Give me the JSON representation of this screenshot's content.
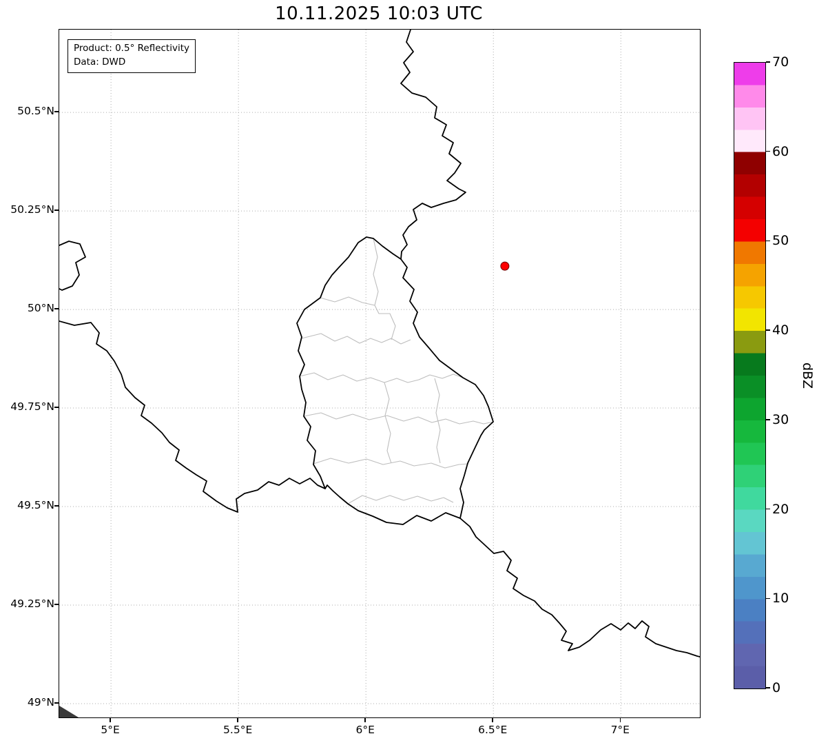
{
  "title": "10.11.2025 10:03 UTC",
  "info_box": {
    "line1": "Product: 0.5° Reflectivity",
    "line2": "Data: DWD"
  },
  "chart_data": {
    "type": "map",
    "title": "10.11.2025 10:03 UTC",
    "product": "0.5° Reflectivity",
    "data_source": "DWD",
    "extent": {
      "lon_min": 4.797,
      "lon_max": 7.31,
      "lat_min": 48.965,
      "lat_max": 50.71
    },
    "lon_ticks": [
      {
        "value": 5.0,
        "label": "5°E"
      },
      {
        "value": 5.5,
        "label": "5.5°E"
      },
      {
        "value": 6.0,
        "label": "6°E"
      },
      {
        "value": 6.5,
        "label": "6.5°E"
      },
      {
        "value": 7.0,
        "label": "7°E"
      }
    ],
    "lat_ticks": [
      {
        "value": 50.5,
        "label": "50.5°N"
      },
      {
        "value": 50.25,
        "label": "50.25°N"
      },
      {
        "value": 50.0,
        "label": "50°N"
      },
      {
        "value": 49.75,
        "label": "49.75°N"
      },
      {
        "value": 49.5,
        "label": "49.5°N"
      },
      {
        "value": 49.25,
        "label": "49.25°N"
      },
      {
        "value": 49.0,
        "label": "49°N"
      }
    ],
    "grid": {
      "style": "dotted",
      "color": "#ababab"
    },
    "radar_site": {
      "lon": 6.545,
      "lat": 50.11,
      "color": "#ff0000"
    },
    "colorbar": {
      "label": "dBZ",
      "min": 0,
      "max": 70,
      "ticks": [
        0,
        10,
        20,
        30,
        40,
        50,
        60,
        70
      ],
      "band_size": 2.5,
      "colors_bottom_to_top": [
        "#5b5ea9",
        "#6066b0",
        "#5470ba",
        "#4b80c3",
        "#4f96cc",
        "#58a9d1",
        "#63c5d3",
        "#5ad8c1",
        "#40d99e",
        "#2fd177",
        "#20c654",
        "#16b83d",
        "#0da52f",
        "#0a8f26",
        "#077a1d",
        "#8a9b10",
        "#f2e500",
        "#f6c800",
        "#f5a300",
        "#f07800",
        "#f40000",
        "#d50000",
        "#b30000",
        "#8f0000",
        "#ffe9fb",
        "#ffc4f4",
        "#ff8aea",
        "#ee3dea"
      ]
    },
    "map": {
      "country_border_color": "#000000",
      "admin_border_color": "#bdbdbd",
      "country_borders": [
        [
          [
            510,
            0
          ],
          [
            504,
            18
          ],
          [
            514,
            32
          ],
          [
            500,
            48
          ],
          [
            509,
            62
          ],
          [
            496,
            78
          ],
          [
            512,
            92
          ],
          [
            532,
            98
          ],
          [
            548,
            112
          ],
          [
            545,
            128
          ],
          [
            562,
            138
          ],
          [
            556,
            154
          ],
          [
            572,
            164
          ],
          [
            566,
            180
          ],
          [
            583,
            194
          ],
          [
            574,
            208
          ],
          [
            563,
            219
          ],
          [
            580,
            231
          ],
          [
            590,
            236
          ],
          [
            576,
            247
          ],
          [
            558,
            252
          ],
          [
            540,
            258
          ],
          [
            527,
            252
          ],
          [
            514,
            261
          ],
          [
            519,
            276
          ],
          [
            507,
            286
          ],
          [
            499,
            298
          ],
          [
            505,
            312
          ],
          [
            497,
            322
          ],
          [
            496,
            333
          ]
        ],
        [
          [
            0,
            313
          ],
          [
            14,
            307
          ],
          [
            30,
            311
          ],
          [
            38,
            330
          ],
          [
            24,
            338
          ],
          [
            29,
            356
          ],
          [
            19,
            372
          ],
          [
            4,
            378
          ],
          [
            0,
            376
          ]
        ],
        [
          [
            0,
            423
          ],
          [
            22,
            429
          ],
          [
            46,
            425
          ],
          [
            58,
            440
          ],
          [
            54,
            456
          ],
          [
            69,
            466
          ],
          [
            80,
            481
          ],
          [
            90,
            500
          ],
          [
            96,
            519
          ],
          [
            110,
            534
          ],
          [
            124,
            545
          ],
          [
            119,
            560
          ],
          [
            134,
            571
          ],
          [
            149,
            585
          ],
          [
            160,
            599
          ],
          [
            174,
            610
          ],
          [
            169,
            625
          ],
          [
            184,
            636
          ],
          [
            199,
            646
          ],
          [
            214,
            655
          ],
          [
            209,
            670
          ],
          [
            228,
            684
          ],
          [
            244,
            694
          ],
          [
            259,
            700
          ],
          [
            257,
            681
          ],
          [
            269,
            673
          ],
          [
            288,
            668
          ],
          [
            304,
            656
          ],
          [
            319,
            661
          ],
          [
            334,
            651
          ],
          [
            349,
            659
          ],
          [
            364,
            651
          ],
          [
            375,
            661
          ],
          [
            386,
            666
          ]
        ],
        [
          [
            496,
            333
          ],
          [
            505,
            345
          ],
          [
            499,
            360
          ],
          [
            515,
            377
          ],
          [
            509,
            394
          ],
          [
            520,
            410
          ],
          [
            514,
            426
          ],
          [
            523,
            446
          ],
          [
            536,
            461
          ],
          [
            552,
            480
          ],
          [
            571,
            494
          ],
          [
            586,
            505
          ],
          [
            604,
            515
          ],
          [
            616,
            531
          ],
          [
            623,
            547
          ],
          [
            630,
            569
          ],
          [
            617,
            581
          ],
          [
            612,
            589
          ],
          [
            601,
            612
          ],
          [
            593,
            629
          ],
          [
            588,
            647
          ],
          [
            582,
            666
          ],
          [
            587,
            686
          ],
          [
            582,
            709
          ],
          [
            561,
            701
          ],
          [
            540,
            713
          ],
          [
            519,
            705
          ],
          [
            499,
            718
          ],
          [
            475,
            715
          ],
          [
            455,
            706
          ],
          [
            434,
            698
          ],
          [
            419,
            688
          ],
          [
            407,
            678
          ],
          [
            397,
            669
          ],
          [
            389,
            661
          ],
          [
            386,
            666
          ],
          [
            379,
            648
          ],
          [
            369,
            631
          ],
          [
            372,
            611
          ],
          [
            360,
            596
          ],
          [
            365,
            576
          ],
          [
            355,
            561
          ],
          [
            358,
            541
          ],
          [
            352,
            522
          ],
          [
            349,
            503
          ],
          [
            356,
            486
          ],
          [
            347,
            466
          ],
          [
            352,
            446
          ],
          [
            345,
            426
          ],
          [
            356,
            406
          ],
          [
            379,
            389
          ],
          [
            386,
            371
          ],
          [
            396,
            356
          ],
          [
            406,
            345
          ],
          [
            420,
            330
          ],
          [
            434,
            309
          ],
          [
            446,
            301
          ],
          [
            456,
            303
          ],
          [
            469,
            314
          ],
          [
            484,
            325
          ],
          [
            496,
            333
          ]
        ],
        [
          [
            582,
            709
          ],
          [
            596,
            721
          ],
          [
            605,
            736
          ],
          [
            618,
            748
          ],
          [
            631,
            760
          ],
          [
            645,
            757
          ],
          [
            656,
            770
          ],
          [
            650,
            785
          ],
          [
            665,
            796
          ],
          [
            659,
            811
          ],
          [
            674,
            821
          ],
          [
            690,
            829
          ],
          [
            701,
            841
          ],
          [
            715,
            849
          ],
          [
            726,
            861
          ],
          [
            736,
            873
          ],
          [
            729,
            886
          ],
          [
            745,
            891
          ],
          [
            739,
            901
          ],
          [
            755,
            896
          ],
          [
            770,
            886
          ],
          [
            786,
            871
          ],
          [
            801,
            862
          ],
          [
            815,
            871
          ],
          [
            826,
            861
          ],
          [
            836,
            869
          ],
          [
            846,
            858
          ],
          [
            856,
            866
          ],
          [
            851,
            881
          ],
          [
            866,
            891
          ],
          [
            881,
            896
          ],
          [
            896,
            901
          ],
          [
            911,
            904
          ],
          [
            926,
            909
          ],
          [
            930,
            910
          ]
        ]
      ],
      "admin_borders": [
        [
          [
            352,
            448
          ],
          [
            380,
            441
          ],
          [
            400,
            452
          ],
          [
            418,
            445
          ],
          [
            436,
            455
          ],
          [
            452,
            448
          ],
          [
            468,
            454
          ],
          [
            482,
            448
          ],
          [
            496,
            456
          ],
          [
            510,
            450
          ]
        ],
        [
          [
            456,
            303
          ],
          [
            462,
            330
          ],
          [
            456,
            355
          ],
          [
            463,
            380
          ],
          [
            458,
            400
          ],
          [
            464,
            412
          ],
          [
            480,
            412
          ],
          [
            488,
            430
          ],
          [
            482,
            450
          ]
        ],
        [
          [
            379,
            389
          ],
          [
            400,
            395
          ],
          [
            420,
            388
          ],
          [
            440,
            396
          ],
          [
            458,
            400
          ]
        ],
        [
          [
            349,
            503
          ],
          [
            370,
            498
          ],
          [
            390,
            508
          ],
          [
            412,
            501
          ],
          [
            432,
            510
          ],
          [
            452,
            505
          ],
          [
            472,
            512
          ],
          [
            490,
            506
          ],
          [
            506,
            512
          ],
          [
            522,
            508
          ],
          [
            538,
            501
          ],
          [
            556,
            506
          ],
          [
            572,
            500
          ],
          [
            586,
            505
          ]
        ],
        [
          [
            355,
            561
          ],
          [
            380,
            556
          ],
          [
            402,
            565
          ],
          [
            426,
            558
          ],
          [
            450,
            566
          ],
          [
            476,
            560
          ],
          [
            500,
            568
          ],
          [
            521,
            562
          ],
          [
            541,
            570
          ],
          [
            561,
            565
          ],
          [
            581,
            572
          ],
          [
            601,
            568
          ],
          [
            616,
            572
          ],
          [
            630,
            569
          ]
        ],
        [
          [
            369,
            630
          ],
          [
            394,
            622
          ],
          [
            420,
            629
          ],
          [
            446,
            623
          ],
          [
            470,
            631
          ],
          [
            495,
            626
          ],
          [
            515,
            633
          ],
          [
            540,
            629
          ],
          [
            560,
            636
          ],
          [
            580,
            631
          ],
          [
            594,
            630
          ]
        ],
        [
          [
            472,
            512
          ],
          [
            479,
            536
          ],
          [
            473,
            560
          ],
          [
            481,
            586
          ],
          [
            476,
            611
          ],
          [
            482,
            629
          ]
        ],
        [
          [
            545,
            506
          ],
          [
            552,
            530
          ],
          [
            547,
            556
          ],
          [
            553,
            581
          ],
          [
            548,
            606
          ],
          [
            553,
            629
          ]
        ],
        [
          [
            419,
            688
          ],
          [
            440,
            676
          ],
          [
            460,
            683
          ],
          [
            480,
            676
          ],
          [
            500,
            683
          ],
          [
            520,
            677
          ],
          [
            540,
            684
          ],
          [
            558,
            679
          ],
          [
            572,
            686
          ]
        ]
      ],
      "corner_patch": [
        [
          0,
          981
        ],
        [
          28,
          998
        ],
        [
          0,
          998
        ]
      ]
    }
  }
}
